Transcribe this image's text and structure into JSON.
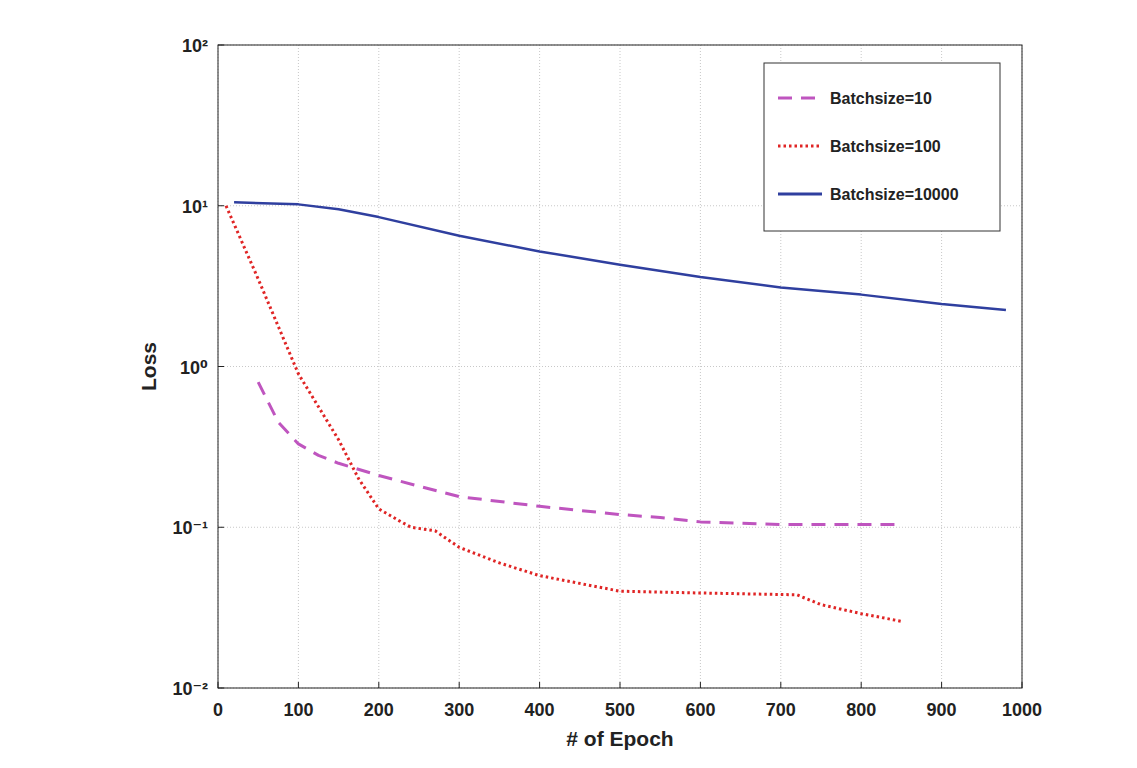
{
  "chart_data": {
    "type": "line",
    "x_label": "# of Epoch",
    "y_label": "Loss",
    "log": "y",
    "grid": true,
    "legend": "top-right",
    "xlim": [
      0,
      1000
    ],
    "xticks": [
      0,
      100,
      200,
      300,
      400,
      500,
      600,
      700,
      800,
      900,
      1000
    ],
    "ylim": [
      0.01,
      100
    ],
    "yticks": [
      {
        "value": 0.01,
        "label": "10⁻²"
      },
      {
        "value": 0.1,
        "label": "10⁻¹"
      },
      {
        "value": 1,
        "label": "10⁰"
      },
      {
        "value": 10,
        "label": "10¹"
      },
      {
        "value": 100,
        "label": "10²"
      }
    ],
    "series": [
      {
        "name": "Batchsize=10",
        "color": "#bf55bf",
        "line_style": "dashed",
        "x": [
          50,
          75,
          100,
          125,
          150,
          200,
          250,
          300,
          400,
          500,
          550,
          600,
          700,
          850
        ],
        "values": [
          0.8,
          0.45,
          0.33,
          0.28,
          0.25,
          0.21,
          0.18,
          0.155,
          0.135,
          0.12,
          0.115,
          0.108,
          0.104,
          0.104
        ]
      },
      {
        "name": "Batchsize=100",
        "color": "#e02525",
        "line_style": "dotted",
        "x": [
          10,
          50,
          100,
          150,
          175,
          200,
          225,
          240,
          270,
          300,
          350,
          400,
          500,
          600,
          720,
          750,
          800,
          850
        ],
        "values": [
          10,
          3.5,
          0.9,
          0.35,
          0.2,
          0.13,
          0.11,
          0.1,
          0.095,
          0.075,
          0.06,
          0.05,
          0.04,
          0.039,
          0.038,
          0.033,
          0.029,
          0.026
        ]
      },
      {
        "name": "Batchsize=10000",
        "color": "#2f3f9f",
        "line_style": "solid",
        "x": [
          20,
          100,
          150,
          200,
          300,
          400,
          500,
          600,
          700,
          800,
          900,
          980
        ],
        "values": [
          10.5,
          10.2,
          9.5,
          8.5,
          6.5,
          5.2,
          4.3,
          3.6,
          3.1,
          2.8,
          2.45,
          2.25
        ]
      }
    ]
  }
}
